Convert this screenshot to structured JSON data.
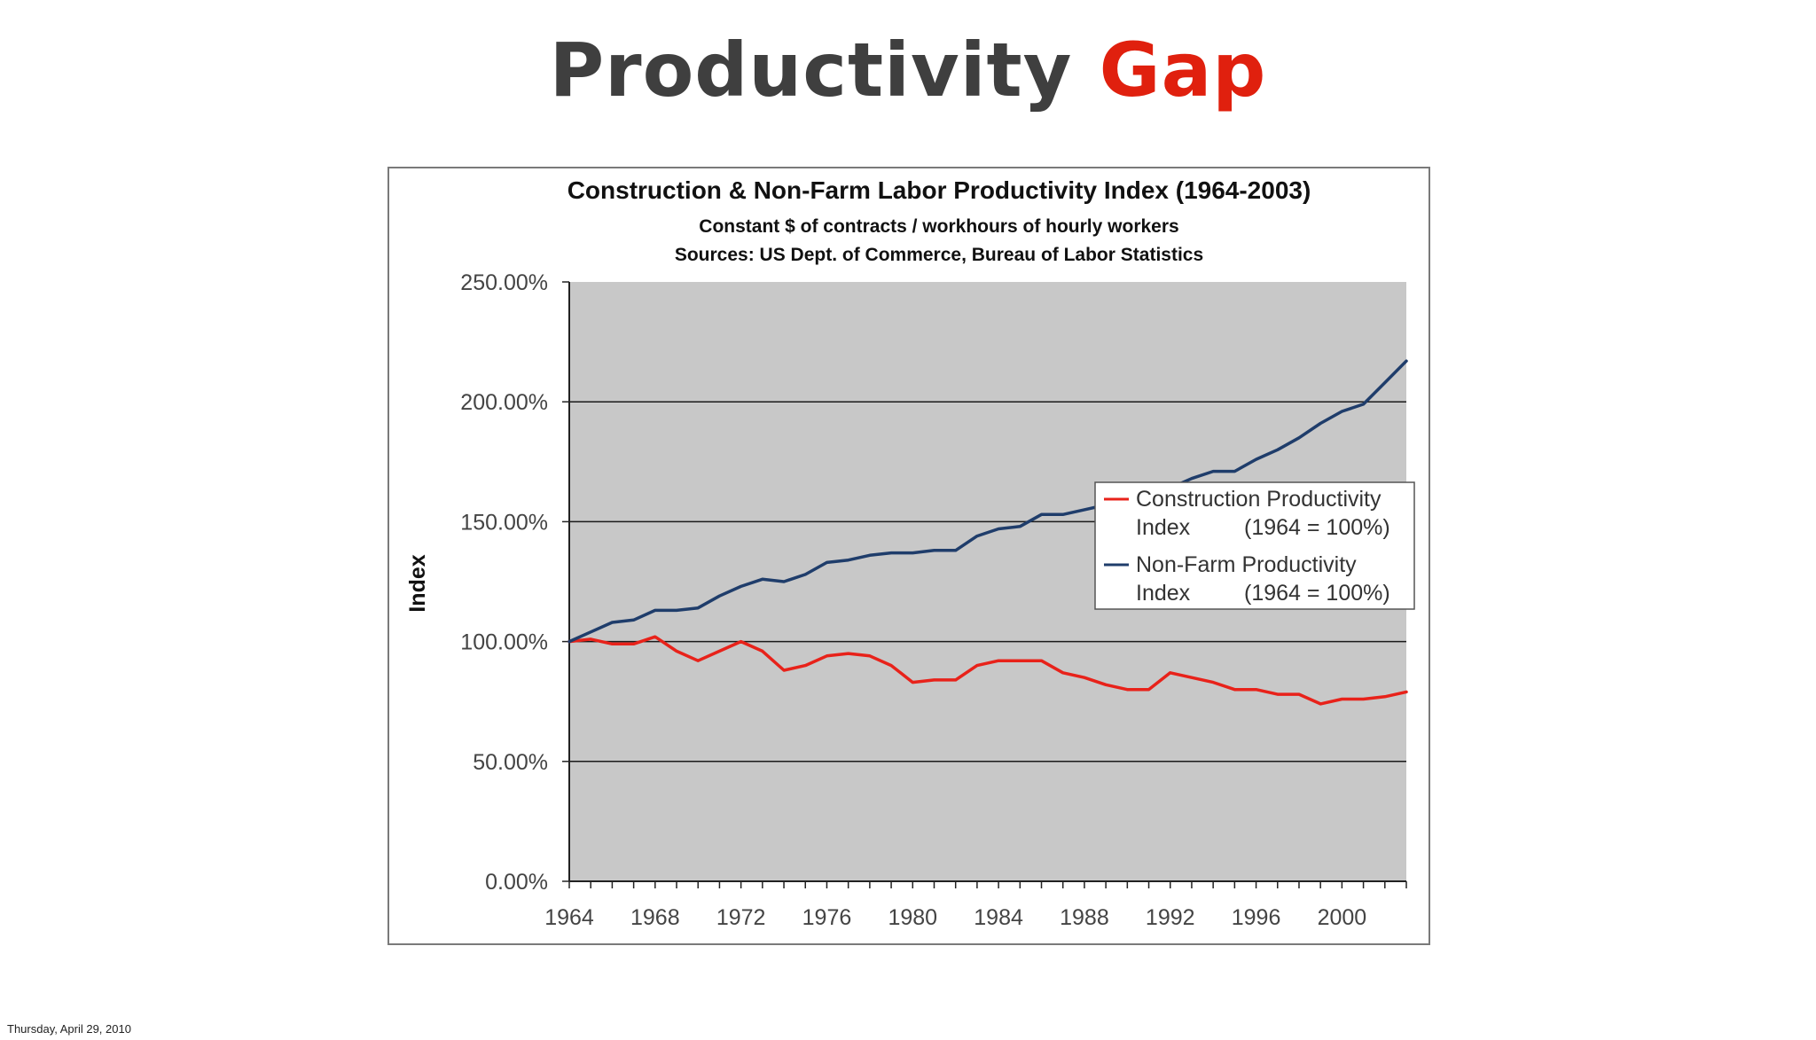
{
  "slide": {
    "title_part1": "Productivity",
    "title_part2": "Gap",
    "footer_date": "Thursday, April 29, 2010"
  },
  "colors": {
    "title_dark": "#3f3f3f",
    "title_accent": "#e0200e",
    "plot_background": "#c8c8c8",
    "construction_line": "#e8221a",
    "nonfarm_line": "#1f3d6b"
  },
  "chart_data": {
    "type": "line",
    "title": "Construction & Non-Farm Labor Productivity Index (1964-2003)",
    "subtitle_lines": [
      "Constant $ of contracts / workhours of hourly workers",
      "Sources: US Dept. of Commerce, Bureau of Labor Statistics"
    ],
    "xlabel": "",
    "ylabel": "Index",
    "ylim": [
      0,
      250
    ],
    "yticks": [
      0,
      50,
      100,
      150,
      200,
      250
    ],
    "ytick_labels": [
      "0.00%",
      "50.00%",
      "100.00%",
      "150.00%",
      "200.00%",
      "250.00%"
    ],
    "xlim": [
      1964,
      2003
    ],
    "xtick_labels": [
      "1964",
      "1968",
      "1972",
      "1976",
      "1980",
      "1984",
      "1988",
      "1992",
      "1996",
      "2000"
    ],
    "grid": true,
    "legend_position": "right",
    "x": [
      1964,
      1965,
      1966,
      1967,
      1968,
      1969,
      1970,
      1971,
      1972,
      1973,
      1974,
      1975,
      1976,
      1977,
      1978,
      1979,
      1980,
      1981,
      1982,
      1983,
      1984,
      1985,
      1986,
      1987,
      1988,
      1989,
      1990,
      1991,
      1992,
      1993,
      1994,
      1995,
      1996,
      1997,
      1998,
      1999,
      2000,
      2001,
      2002,
      2003
    ],
    "series": [
      {
        "name": "Construction Productivity Index (1964 = 100%)",
        "legend_line1": "Construction Productivity",
        "legend_line2_a": "Index",
        "legend_line2_b": "(1964 = 100%)",
        "color": "#e8221a",
        "values": [
          100,
          101,
          99,
          99,
          102,
          96,
          92,
          96,
          100,
          96,
          88,
          90,
          94,
          95,
          94,
          90,
          83,
          84,
          84,
          90,
          92,
          92,
          92,
          87,
          85,
          82,
          80,
          80,
          87,
          85,
          83,
          80,
          80,
          78,
          78,
          74,
          76,
          76,
          77,
          79
        ]
      },
      {
        "name": "Non-Farm Productivity Index (1964 = 100%)",
        "legend_line1": "Non-Farm Productivity",
        "legend_line2_a": "Index",
        "legend_line2_b": "(1964 = 100%)",
        "color": "#1f3d6b",
        "values": [
          100,
          104,
          108,
          109,
          113,
          113,
          114,
          119,
          123,
          126,
          125,
          128,
          133,
          134,
          136,
          137,
          137,
          138,
          138,
          144,
          147,
          148,
          153,
          153,
          155,
          157,
          159,
          160,
          164,
          168,
          171,
          171,
          176,
          180,
          185,
          191,
          196,
          199,
          208,
          217
        ]
      }
    ]
  }
}
